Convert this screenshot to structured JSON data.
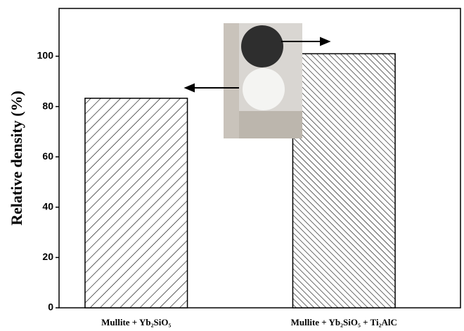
{
  "chart_data": {
    "type": "bar",
    "y_label": "Relative density (%)",
    "categories": [
      "Mullite + Yb₂SiO₅",
      "Mullite + Yb₂SiO₅ + Ti₂AlC"
    ],
    "values": [
      83.3,
      101
    ],
    "color": "#000000",
    "ylim": [
      0,
      119
    ],
    "yticks": [
      0,
      20,
      40,
      60,
      80,
      100
    ]
  }
}
